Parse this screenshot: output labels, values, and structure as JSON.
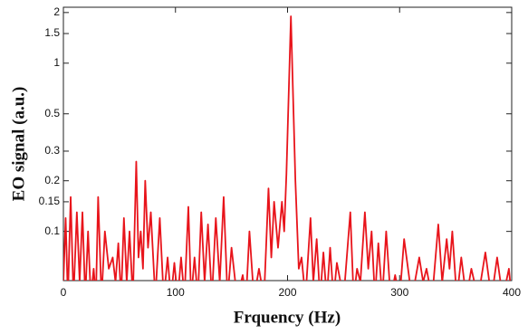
{
  "chart_data": {
    "type": "line",
    "xlabel": "Frquency (Hz)",
    "ylabel": "EO signal (a.u.)",
    "log_y": true,
    "grid": false,
    "xlim": [
      0,
      400
    ],
    "xticks": [
      0,
      100,
      200,
      300,
      400
    ],
    "ylim": [
      0.051,
      2.15
    ],
    "yticks": [
      0.1,
      0.15,
      0.2,
      0.3,
      0.5,
      1,
      1.5,
      2
    ],
    "series": [
      {
        "color": "#e8141b",
        "x": [
          0,
          2,
          4,
          6.5,
          9,
          12,
          14.5,
          17,
          19.5,
          22,
          24.5,
          27,
          29,
          31,
          34,
          37,
          40.5,
          44,
          46.5,
          49,
          51.5,
          54,
          56.5,
          59,
          62,
          65,
          67,
          69,
          71,
          73,
          75.5,
          78,
          82,
          86,
          89.5,
          93,
          96,
          99,
          102,
          105,
          108,
          111.5,
          114,
          117,
          120,
          123,
          126,
          129,
          132.5,
          136,
          139.5,
          143,
          146.5,
          150,
          155,
          160,
          163,
          166,
          170,
          174.5,
          179,
          183,
          185.5,
          188,
          191.5,
          195,
          197,
          199,
          203,
          207,
          210,
          212.5,
          216,
          220.5,
          223,
          226,
          229,
          232,
          235,
          238,
          241,
          244,
          250,
          256,
          259,
          262,
          265,
          269,
          272,
          275,
          278,
          281,
          284.5,
          288,
          292,
          296,
          300,
          304,
          311,
          317.5,
          321,
          324,
          329,
          334.5,
          338,
          342,
          344.5,
          347,
          351,
          355,
          359.5,
          364,
          370,
          376.5,
          382,
          387,
          392,
          397.5,
          400
        ],
        "values": [
          0.05,
          0.12,
          0.04,
          0.16,
          0.04,
          0.13,
          0.05,
          0.13,
          0.04,
          0.1,
          0.04,
          0.06,
          0.04,
          0.16,
          0.04,
          0.1,
          0.06,
          0.07,
          0.05,
          0.085,
          0.04,
          0.12,
          0.05,
          0.1,
          0.04,
          0.26,
          0.07,
          0.1,
          0.06,
          0.2,
          0.08,
          0.13,
          0.04,
          0.12,
          0.04,
          0.07,
          0.04,
          0.065,
          0.04,
          0.07,
          0.04,
          0.14,
          0.04,
          0.07,
          0.04,
          0.13,
          0.05,
          0.11,
          0.04,
          0.12,
          0.05,
          0.16,
          0.04,
          0.08,
          0.04,
          0.055,
          0.04,
          0.1,
          0.04,
          0.06,
          0.04,
          0.18,
          0.07,
          0.15,
          0.08,
          0.15,
          0.1,
          0.22,
          1.9,
          0.2,
          0.06,
          0.07,
          0.04,
          0.12,
          0.05,
          0.09,
          0.04,
          0.075,
          0.04,
          0.08,
          0.04,
          0.065,
          0.04,
          0.13,
          0.04,
          0.06,
          0.05,
          0.13,
          0.06,
          0.1,
          0.04,
          0.085,
          0.04,
          0.1,
          0.04,
          0.055,
          0.04,
          0.09,
          0.04,
          0.07,
          0.05,
          0.06,
          0.04,
          0.11,
          0.05,
          0.09,
          0.06,
          0.1,
          0.04,
          0.07,
          0.04,
          0.06,
          0.04,
          0.075,
          0.04,
          0.07,
          0.04,
          0.06,
          0.04
        ]
      }
    ]
  }
}
